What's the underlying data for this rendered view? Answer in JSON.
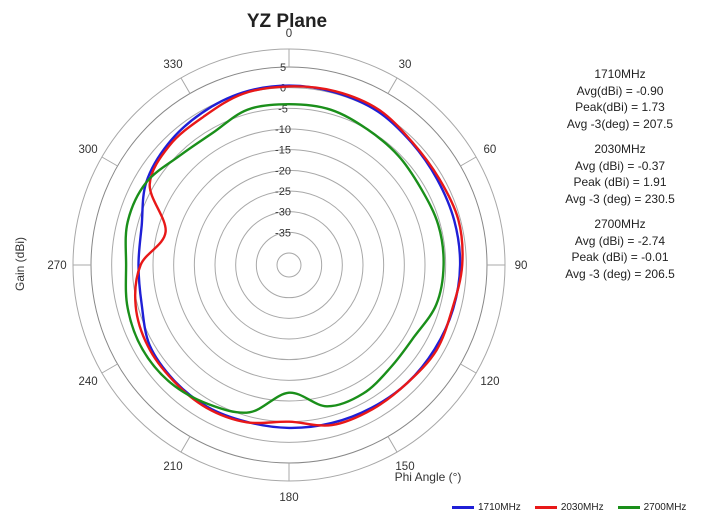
{
  "chart_data": {
    "type": "polar",
    "title": "YZ Plane",
    "radial_label": "Gain (dBi)",
    "angular_label": "Phi Angle (°)",
    "angle_ticks": [
      "0",
      "30",
      "60",
      "90",
      "120",
      "150",
      "180",
      "210",
      "240",
      "270",
      "300",
      "330"
    ],
    "radial_ticks": [
      "5",
      "0",
      "-5",
      "-10",
      "-15",
      "-20",
      "-25",
      "-30",
      "-35"
    ],
    "rlim": [
      -40,
      5
    ],
    "grid": true,
    "legend_position": "bottom-right",
    "series": [
      {
        "name": "1710MHz",
        "color": "#1f1fd6",
        "angles": [
          0,
          15,
          30,
          45,
          60,
          75,
          90,
          105,
          120,
          135,
          150,
          165,
          180,
          195,
          210,
          225,
          240,
          255,
          270,
          285,
          300,
          315,
          330,
          345
        ],
        "values": [
          0.5,
          0.3,
          0,
          -1,
          -1.5,
          -1.5,
          -1.5,
          -1.8,
          -2.2,
          -2.5,
          -3,
          -3.3,
          -3.5,
          -3.6,
          -3.3,
          -3.5,
          -4,
          -6,
          -6.5,
          -6,
          -3,
          -1.5,
          -0.5,
          0.3
        ]
      },
      {
        "name": "2030MHz",
        "color": "#e81818",
        "angles": [
          0,
          15,
          30,
          45,
          60,
          75,
          90,
          105,
          120,
          135,
          150,
          165,
          180,
          195,
          210,
          225,
          240,
          255,
          270,
          285,
          300,
          315,
          330,
          345
        ],
        "values": [
          0.3,
          0.6,
          0.5,
          -0.8,
          -1,
          -0.5,
          -1,
          -2,
          -1.7,
          -2.5,
          -2.6,
          -2.8,
          -5,
          -3.5,
          -3,
          -3.3,
          -3.5,
          -4.5,
          -7,
          -12,
          -4,
          -2,
          -1.5,
          0
        ]
      },
      {
        "name": "2700MHz",
        "color": "#1a8f1a",
        "angles": [
          0,
          15,
          30,
          45,
          60,
          75,
          90,
          105,
          120,
          135,
          150,
          165,
          180,
          195,
          210,
          225,
          240,
          255,
          270,
          285,
          300,
          315,
          330,
          345
        ],
        "values": [
          -4,
          -4,
          -5,
          -5.5,
          -6,
          -5.5,
          -5.5,
          -6,
          -8,
          -8,
          -7,
          -7.5,
          -12,
          -6,
          -4,
          -2.5,
          -2,
          -2.5,
          -3.5,
          -2.5,
          -3,
          -5.5,
          -6,
          -4
        ]
      }
    ],
    "annotations": [
      {
        "freq": "1710MHz",
        "rows": [
          [
            "Avg(dBi) =",
            "-0.90"
          ],
          [
            "Peak(dBi) =",
            "1.73"
          ],
          [
            "Avg -3(deg) =",
            "207.5"
          ]
        ]
      },
      {
        "freq": "2030MHz",
        "rows": [
          [
            "Avg (dBi) =",
            "-0.37"
          ],
          [
            "Peak (dBi) =",
            "1.91"
          ],
          [
            "Avg -3 (deg) =",
            "230.5"
          ]
        ]
      },
      {
        "freq": "2700MHz",
        "rows": [
          [
            "Avg (dBi) =",
            "-2.74"
          ],
          [
            "Peak (dBi) =",
            "-0.01"
          ],
          [
            "Avg -3 (deg) =",
            "206.5"
          ]
        ]
      }
    ]
  }
}
